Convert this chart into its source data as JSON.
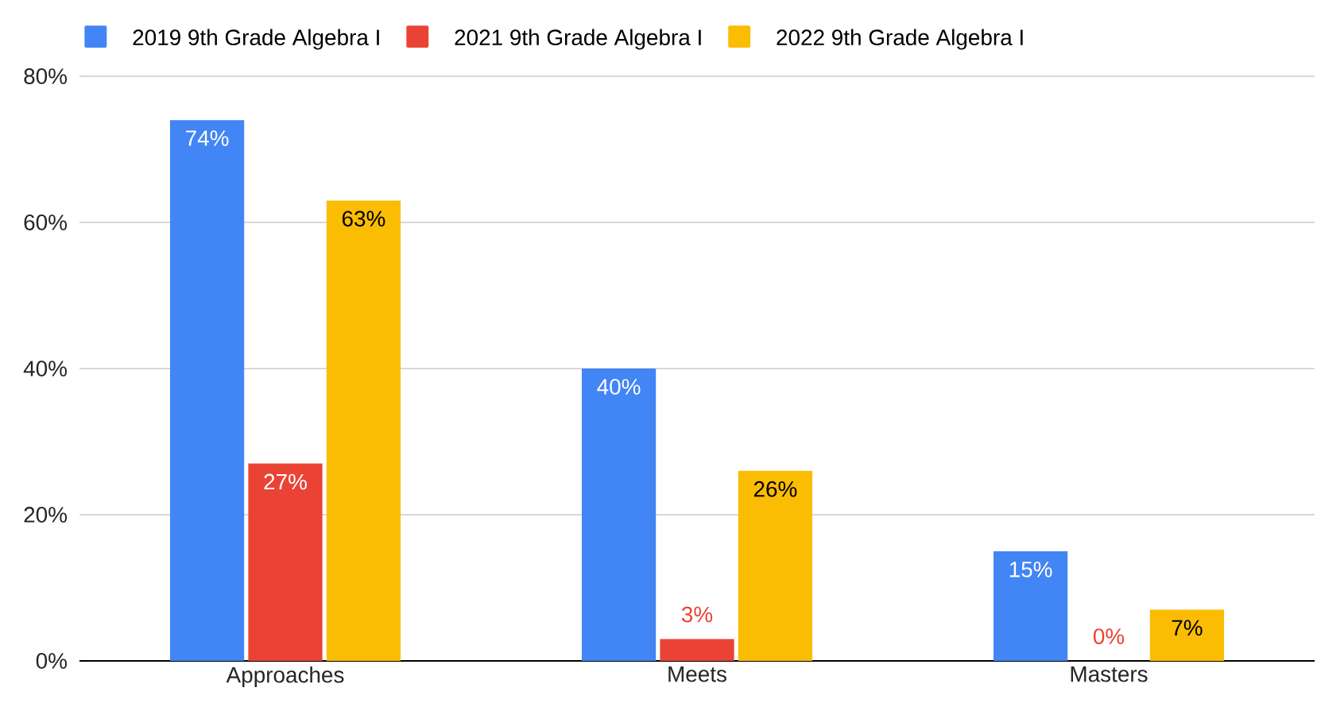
{
  "chart_data": {
    "type": "bar",
    "categories": [
      "Approaches",
      "Meets",
      "Masters"
    ],
    "series": [
      {
        "name": "2019 9th Grade Algebra I",
        "color": "#4285f4",
        "values": [
          74,
          40,
          15
        ],
        "value_labels": [
          "74%",
          "40%",
          "15%"
        ]
      },
      {
        "name": "2021 9th Grade Algebra I",
        "color": "#ea4335",
        "values": [
          27,
          3,
          0
        ],
        "value_labels": [
          "27%",
          "3%",
          "0%"
        ]
      },
      {
        "name": "2022 9th Grade Algebra I",
        "color": "#fbbc04",
        "values": [
          63,
          26,
          7
        ],
        "value_labels": [
          "63%",
          "26%",
          "7%"
        ]
      }
    ],
    "ylim": [
      0,
      80
    ],
    "yticks": [
      {
        "value": 0,
        "label": "0%"
      },
      {
        "value": 20,
        "label": "20%"
      },
      {
        "value": 40,
        "label": "40%"
      },
      {
        "value": 60,
        "label": "60%"
      },
      {
        "value": 80,
        "label": "80%"
      }
    ],
    "grid": "y",
    "legend": "top left"
  }
}
